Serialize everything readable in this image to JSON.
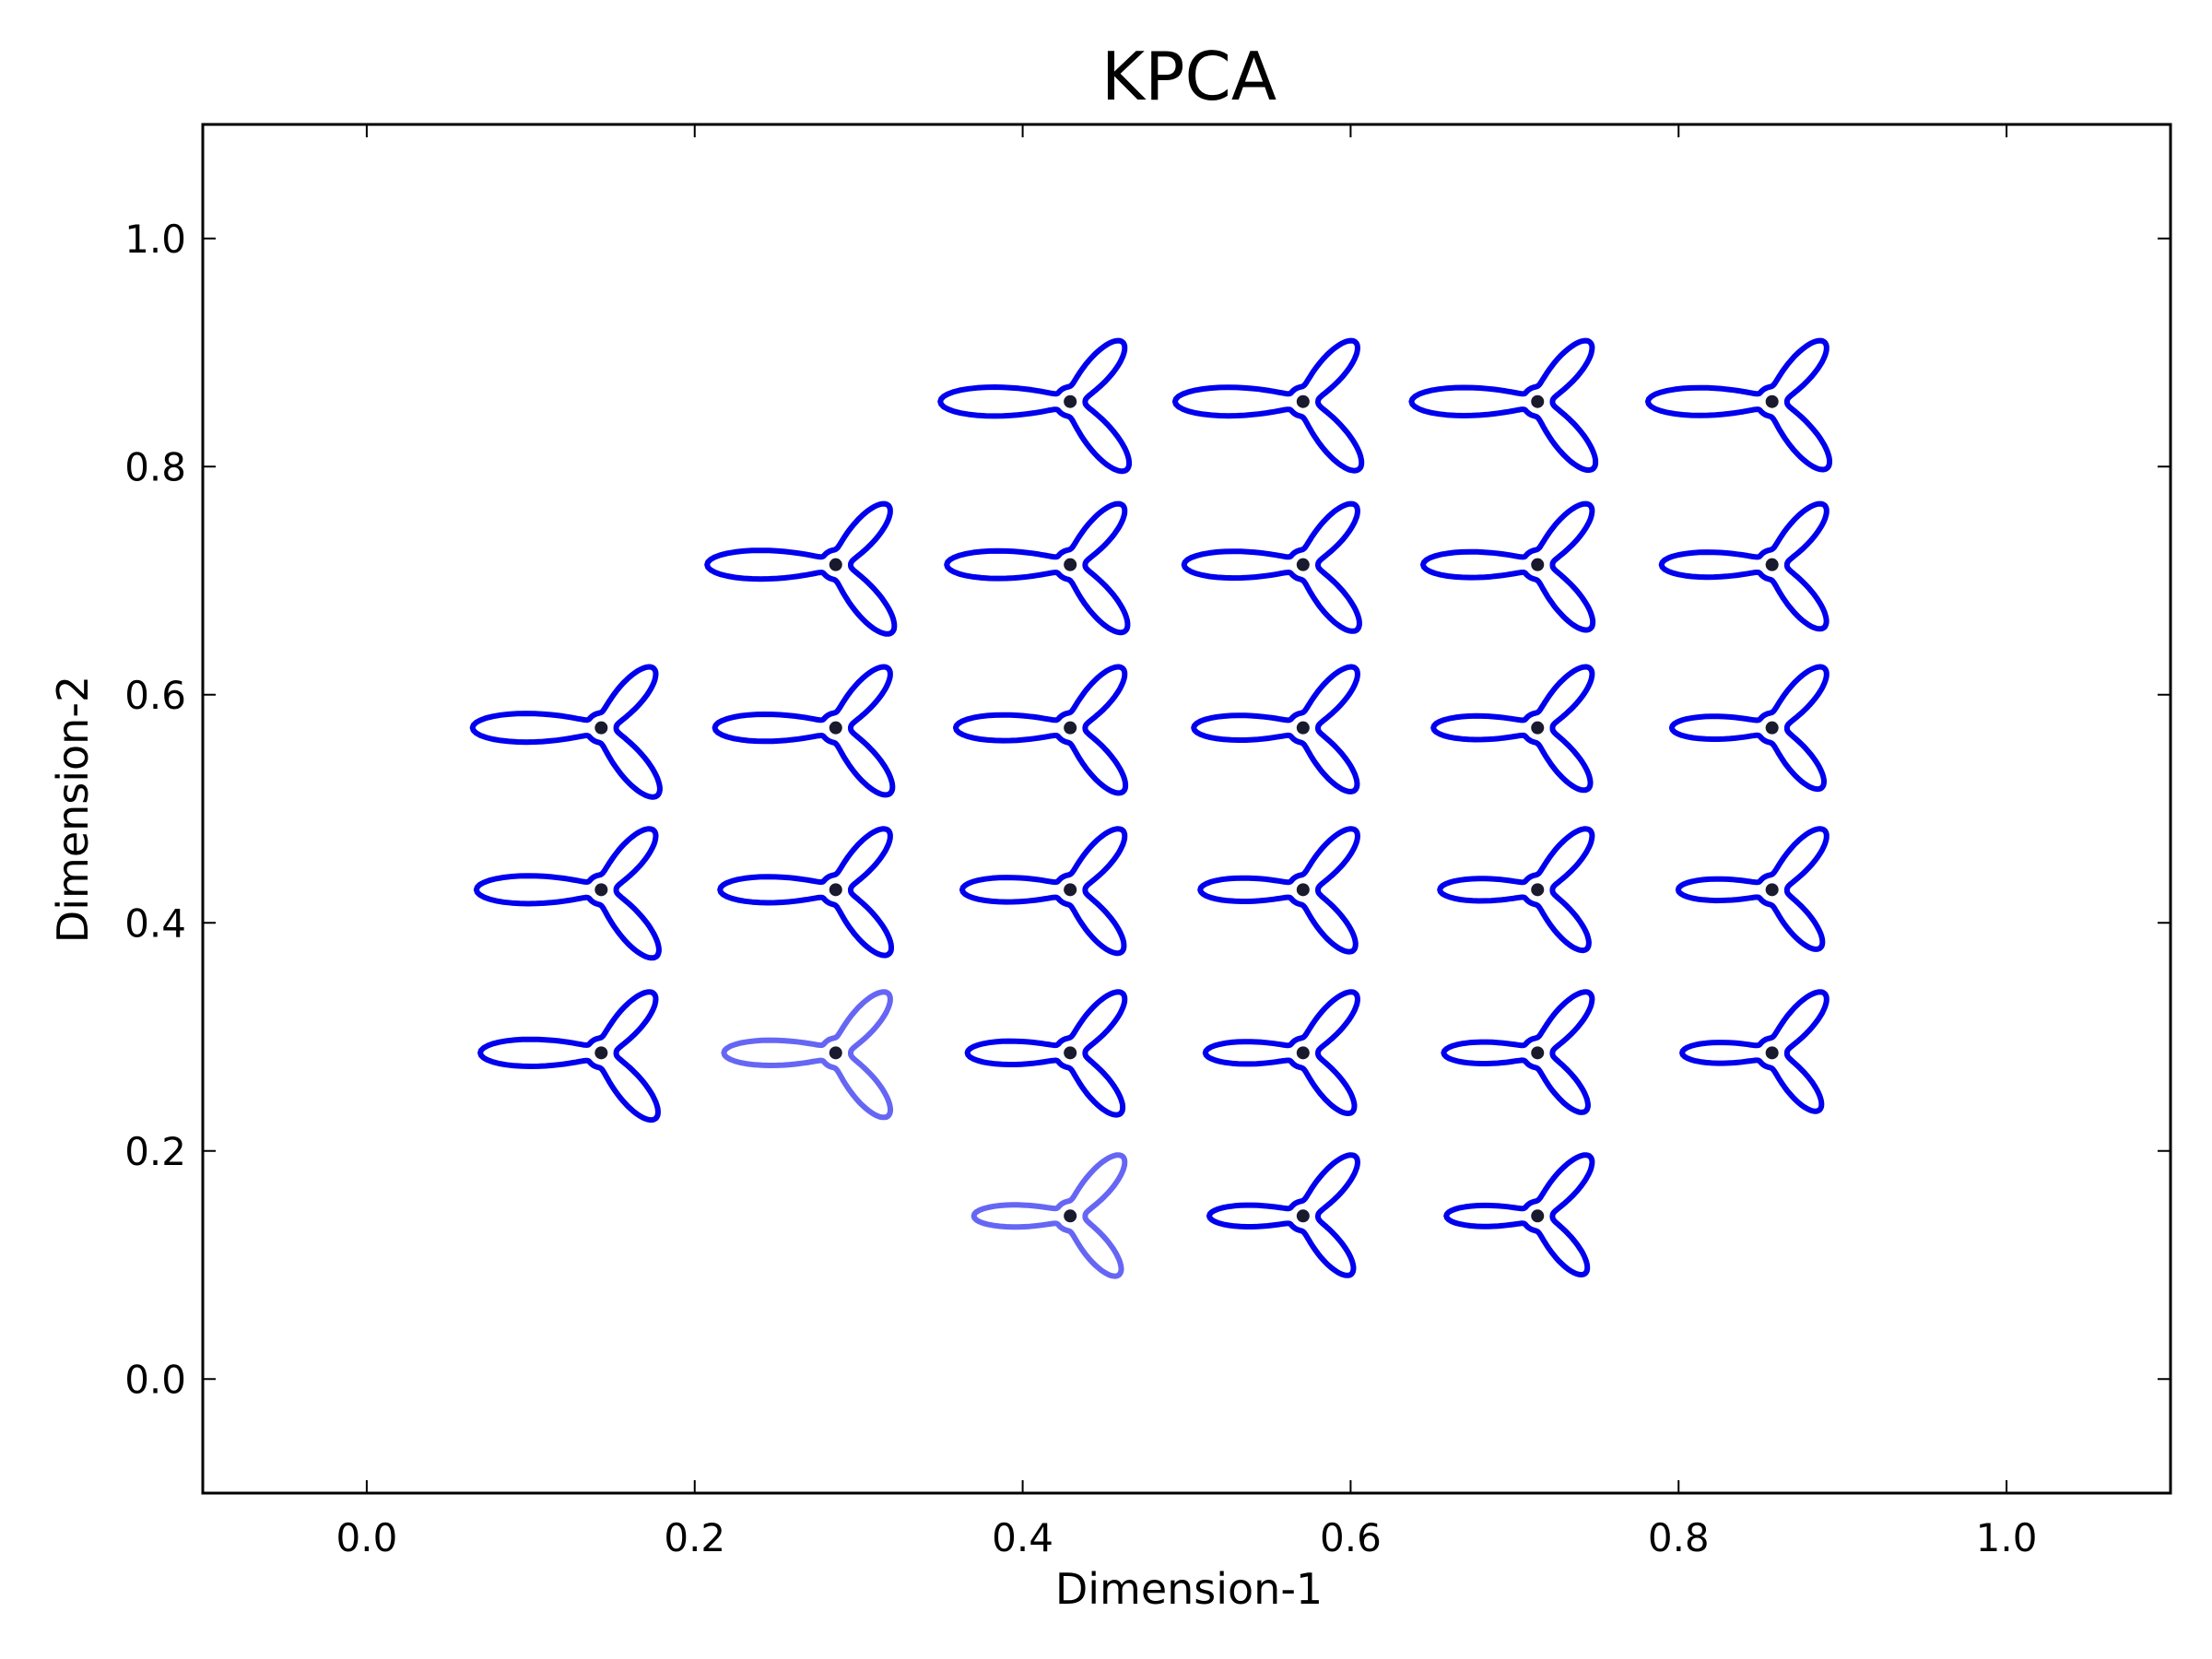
{
  "chart_data": {
    "type": "scatter",
    "title": "KPCA",
    "xlabel": "Dimension-1",
    "ylabel": "Dimension-2",
    "xlim": [
      -0.1,
      1.1
    ],
    "ylim": [
      -0.1,
      1.1
    ],
    "x_ticks": [
      {
        "value": 0.0,
        "label": "0.0"
      },
      {
        "value": 0.2,
        "label": "0.2"
      },
      {
        "value": 0.4,
        "label": "0.4"
      },
      {
        "value": 0.6,
        "label": "0.6"
      },
      {
        "value": 0.8,
        "label": "0.8"
      },
      {
        "value": 1.0,
        "label": "1.0"
      }
    ],
    "y_ticks": [
      {
        "value": 0.0,
        "label": "0.0"
      },
      {
        "value": 0.2,
        "label": "0.2"
      },
      {
        "value": 0.4,
        "label": "0.4"
      },
      {
        "value": 0.6,
        "label": "0.6"
      },
      {
        "value": 0.8,
        "label": "0.8"
      },
      {
        "value": 1.0,
        "label": "1.0"
      }
    ],
    "grid": false,
    "legend": "none",
    "point_color": "#1a1a2e",
    "glyph_color": "#0000ee",
    "points": [
      {
        "x": 0.429,
        "y": 0.857,
        "arm": 1.0,
        "faded": false
      },
      {
        "x": 0.571,
        "y": 0.857,
        "arm": 0.97,
        "faded": false
      },
      {
        "x": 0.714,
        "y": 0.857,
        "arm": 0.94,
        "faded": false
      },
      {
        "x": 0.857,
        "y": 0.857,
        "arm": 0.91,
        "faded": false
      },
      {
        "x": 0.286,
        "y": 0.714,
        "arm": 0.98,
        "faded": false
      },
      {
        "x": 0.429,
        "y": 0.714,
        "arm": 0.9,
        "faded": false
      },
      {
        "x": 0.571,
        "y": 0.714,
        "arm": 0.83,
        "faded": false
      },
      {
        "x": 0.714,
        "y": 0.714,
        "arm": 0.76,
        "faded": false
      },
      {
        "x": 0.857,
        "y": 0.714,
        "arm": 0.7,
        "faded": false
      },
      {
        "x": 0.143,
        "y": 0.571,
        "arm": 0.98,
        "faded": false
      },
      {
        "x": 0.286,
        "y": 0.571,
        "arm": 0.86,
        "faded": false
      },
      {
        "x": 0.429,
        "y": 0.571,
        "arm": 0.76,
        "faded": false
      },
      {
        "x": 0.571,
        "y": 0.571,
        "arm": 0.68,
        "faded": false
      },
      {
        "x": 0.714,
        "y": 0.571,
        "arm": 0.6,
        "faded": false
      },
      {
        "x": 0.857,
        "y": 0.571,
        "arm": 0.54,
        "faded": false
      },
      {
        "x": 0.143,
        "y": 0.429,
        "arm": 0.92,
        "faded": false
      },
      {
        "x": 0.286,
        "y": 0.429,
        "arm": 0.78,
        "faded": false
      },
      {
        "x": 0.429,
        "y": 0.429,
        "arm": 0.66,
        "faded": false
      },
      {
        "x": 0.571,
        "y": 0.429,
        "arm": 0.58,
        "faded": false
      },
      {
        "x": 0.714,
        "y": 0.429,
        "arm": 0.5,
        "faded": false
      },
      {
        "x": 0.857,
        "y": 0.429,
        "arm": 0.44,
        "faded": false
      },
      {
        "x": 0.143,
        "y": 0.286,
        "arm": 0.86,
        "faded": false
      },
      {
        "x": 0.286,
        "y": 0.286,
        "arm": 0.72,
        "faded": true
      },
      {
        "x": 0.429,
        "y": 0.286,
        "arm": 0.58,
        "faded": false
      },
      {
        "x": 0.571,
        "y": 0.286,
        "arm": 0.5,
        "faded": false
      },
      {
        "x": 0.714,
        "y": 0.286,
        "arm": 0.44,
        "faded": false
      },
      {
        "x": 0.857,
        "y": 0.286,
        "arm": 0.38,
        "faded": false
      },
      {
        "x": 0.429,
        "y": 0.143,
        "arm": 0.48,
        "faded": true
      },
      {
        "x": 0.571,
        "y": 0.143,
        "arm": 0.44,
        "faded": false
      },
      {
        "x": 0.714,
        "y": 0.143,
        "arm": 0.4,
        "faded": false
      }
    ]
  }
}
